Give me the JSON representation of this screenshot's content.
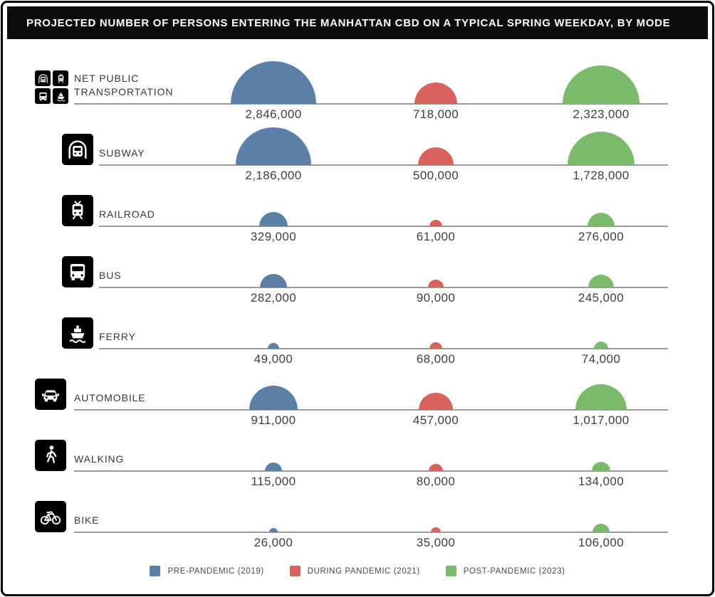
{
  "title": "PROJECTED NUMBER OF PERSONS ENTERING THE MANHATTAN CBD ON A TYPICAL SPRING WEEKDAY, BY MODE",
  "colors": {
    "pre_pandemic": "#5b7fa6",
    "during_pandemic": "#d9635c",
    "post_pandemic": "#7cba6b",
    "baseline": "#9b9b9b",
    "title_bg": "#0c0c0c",
    "icon_bg": "#000000"
  },
  "legend": [
    {
      "label": "PRE-PANDEMIC (2019)",
      "color": "#5b7fa6"
    },
    {
      "label": "DURING PANDEMIC (2021)",
      "color": "#d9635c"
    },
    {
      "label": "POST-PANDEMIC (2023)",
      "color": "#7cba6b"
    }
  ],
  "rows": [
    {
      "label": "NET PUBLIC TRANSPORTATION",
      "icon": "net-public-transportation-icon",
      "values": [
        2846000,
        718000,
        2323000
      ],
      "display": [
        "2,846,000",
        "718,000",
        "2,323,000"
      ]
    },
    {
      "label": "SUBWAY",
      "icon": "subway-icon",
      "values": [
        2186000,
        500000,
        1728000
      ],
      "display": [
        "2,186,000",
        "500,000",
        "1,728,000"
      ]
    },
    {
      "label": "RAILROAD",
      "icon": "railroad-icon",
      "values": [
        329000,
        61000,
        276000
      ],
      "display": [
        "329,000",
        "61,000",
        "276,000"
      ]
    },
    {
      "label": "BUS",
      "icon": "bus-icon",
      "values": [
        282000,
        90000,
        245000
      ],
      "display": [
        "282,000",
        "90,000",
        "245,000"
      ]
    },
    {
      "label": "FERRY",
      "icon": "ferry-icon",
      "values": [
        49000,
        68000,
        74000
      ],
      "display": [
        "49,000",
        "68,000",
        "74,000"
      ]
    },
    {
      "label": "AUTOMOBILE",
      "icon": "automobile-icon",
      "values": [
        911000,
        457000,
        1017000
      ],
      "display": [
        "911,000",
        "457,000",
        "1,017,000"
      ]
    },
    {
      "label": "WALKING",
      "icon": "walking-icon",
      "values": [
        115000,
        80000,
        134000
      ],
      "display": [
        "115,000",
        "80,000",
        "134,000"
      ]
    },
    {
      "label": "BIKE",
      "icon": "bike-icon",
      "values": [
        26000,
        35000,
        106000
      ],
      "display": [
        "26,000",
        "35,000",
        "106,000"
      ]
    }
  ],
  "chart_data": {
    "type": "bar",
    "note": "rendered as semicircles whose area is proportional to value, sitting on a baseline per category",
    "title": "PROJECTED NUMBER OF PERSONS ENTERING THE MANHATTAN CBD ON A TYPICAL SPRING WEEKDAY, BY MODE",
    "categories": [
      "NET PUBLIC TRANSPORTATION",
      "SUBWAY",
      "RAILROAD",
      "BUS",
      "FERRY",
      "AUTOMOBILE",
      "WALKING",
      "BIKE"
    ],
    "series": [
      {
        "name": "PRE-PANDEMIC (2019)",
        "color": "#5b7fa6",
        "values": [
          2846000,
          2186000,
          329000,
          282000,
          49000,
          911000,
          115000,
          26000
        ]
      },
      {
        "name": "DURING PANDEMIC (2021)",
        "color": "#d9635c",
        "values": [
          718000,
          500000,
          61000,
          90000,
          68000,
          457000,
          80000,
          35000
        ]
      },
      {
        "name": "POST-PANDEMIC (2023)",
        "color": "#7cba6b",
        "values": [
          2323000,
          1728000,
          276000,
          245000,
          74000,
          1017000,
          134000,
          106000
        ]
      }
    ],
    "legend_position": "bottom",
    "grid": false
  }
}
